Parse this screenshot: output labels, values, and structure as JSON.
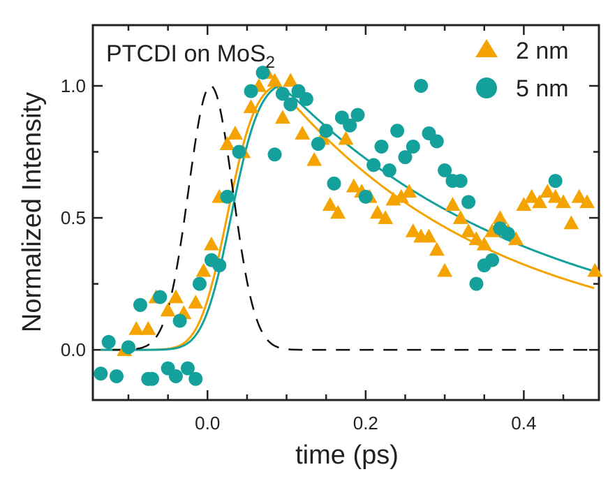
{
  "chart_data": {
    "type": "scatter",
    "annotation": {
      "text": "PTCDI on MoS",
      "subscript": "2"
    },
    "xlabel": "time (ps)",
    "ylabel": "Normalized Intensity",
    "xlim": [
      -0.145,
      0.495
    ],
    "ylim": [
      -0.19,
      1.23
    ],
    "xticks": [
      0.0,
      0.2,
      0.4
    ],
    "xtick_labels": [
      "0.0",
      "0.2",
      "0.4"
    ],
    "yticks": [
      0.0,
      0.5,
      1.0
    ],
    "ytick_labels": [
      "0.0",
      "0.5",
      "1.0"
    ],
    "grid": false,
    "legend_position": "top-right",
    "colors": {
      "orange": "#F5A300",
      "teal": "#14A19B",
      "dashed": "#111111",
      "axis": "#222222"
    },
    "series": [
      {
        "name": "2 nm",
        "marker": "triangle",
        "color": "#F5A300",
        "x": [
          -0.105,
          -0.09,
          -0.075,
          -0.065,
          -0.05,
          -0.04,
          -0.03,
          -0.015,
          -0.005,
          0.005,
          0.015,
          0.025,
          0.035,
          0.045,
          0.055,
          0.065,
          0.075,
          0.085,
          0.095,
          0.105,
          0.12,
          0.135,
          0.145,
          0.155,
          0.165,
          0.175,
          0.185,
          0.195,
          0.205,
          0.215,
          0.225,
          0.235,
          0.245,
          0.255,
          0.26,
          0.27,
          0.28,
          0.29,
          0.3,
          0.31,
          0.32,
          0.33,
          0.34,
          0.35,
          0.36,
          0.37,
          0.38,
          0.39,
          0.4,
          0.41,
          0.42,
          0.43,
          0.44,
          0.45,
          0.46,
          0.47,
          0.48,
          0.49
        ],
        "y": [
          0.0,
          0.08,
          0.08,
          0.2,
          0.15,
          0.2,
          0.14,
          0.18,
          0.3,
          0.4,
          0.58,
          0.78,
          0.82,
          0.75,
          0.92,
          1.0,
          1.05,
          1.02,
          0.88,
          1.02,
          0.82,
          0.72,
          0.8,
          0.55,
          0.52,
          0.8,
          0.62,
          0.6,
          0.58,
          0.52,
          0.5,
          0.57,
          0.58,
          0.6,
          0.45,
          0.43,
          0.43,
          0.38,
          0.3,
          0.55,
          0.5,
          0.45,
          0.42,
          0.4,
          0.45,
          0.5,
          0.45,
          0.42,
          0.55,
          0.58,
          0.56,
          0.6,
          0.58,
          0.56,
          0.48,
          0.58,
          0.56,
          0.3
        ]
      },
      {
        "name": "5 nm",
        "marker": "circle",
        "color": "#14A19B",
        "x": [
          -0.135,
          -0.125,
          -0.115,
          -0.1,
          -0.085,
          -0.075,
          -0.07,
          -0.06,
          -0.05,
          -0.04,
          -0.035,
          -0.025,
          -0.015,
          -0.01,
          0.005,
          0.015,
          0.025,
          0.04,
          0.055,
          0.07,
          0.085,
          0.095,
          0.105,
          0.115,
          0.125,
          0.14,
          0.15,
          0.16,
          0.17,
          0.18,
          0.19,
          0.2,
          0.21,
          0.22,
          0.23,
          0.24,
          0.25,
          0.26,
          0.27,
          0.28,
          0.29,
          0.3,
          0.31,
          0.32,
          0.33,
          0.34,
          0.35,
          0.36,
          0.37,
          0.38,
          0.44
        ],
        "y": [
          -0.09,
          0.03,
          -0.1,
          0.01,
          0.17,
          -0.11,
          -0.11,
          0.2,
          -0.07,
          -0.1,
          0.11,
          -0.07,
          -0.11,
          0.25,
          0.34,
          0.32,
          0.58,
          0.75,
          0.98,
          1.05,
          0.74,
          0.97,
          0.93,
          0.98,
          0.95,
          0.78,
          0.83,
          0.63,
          0.88,
          0.85,
          0.89,
          0.58,
          0.7,
          0.77,
          0.68,
          0.83,
          0.73,
          0.77,
          1.0,
          0.82,
          0.79,
          0.68,
          0.64,
          0.64,
          0.56,
          0.25,
          0.32,
          0.34,
          0.46,
          0.44,
          0.64
        ]
      }
    ],
    "fits": [
      {
        "series": "2 nm",
        "color": "#F5A300",
        "t0": 0.025,
        "sigma": 0.028,
        "tau": 0.275,
        "t_peak": 0.085,
        "x_end": 0.49
      },
      {
        "series": "5 nm",
        "color": "#14A19B",
        "t0": 0.03,
        "sigma": 0.028,
        "tau": 0.325,
        "t_peak": 0.09,
        "x_end": 0.49
      }
    ],
    "irf": {
      "style": "dashed",
      "color": "#111111",
      "center": 0.004,
      "sigma": 0.028,
      "x_start": -0.12,
      "x_end": 0.49
    }
  }
}
